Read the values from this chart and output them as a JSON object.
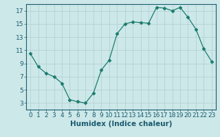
{
  "x": [
    0,
    1,
    2,
    3,
    4,
    5,
    6,
    7,
    8,
    9,
    10,
    11,
    12,
    13,
    14,
    15,
    16,
    17,
    18,
    19,
    20,
    21,
    22,
    23
  ],
  "y": [
    10.5,
    8.5,
    7.5,
    7.0,
    6.0,
    3.5,
    3.2,
    3.0,
    4.5,
    8.0,
    9.5,
    13.5,
    15.0,
    15.3,
    15.2,
    15.1,
    17.5,
    17.4,
    17.0,
    17.5,
    16.0,
    14.2,
    11.2,
    9.3
  ],
  "xlabel": "Humidex (Indice chaleur)",
  "ylabel": "",
  "xlim": [
    -0.5,
    23.5
  ],
  "ylim": [
    2.0,
    18.0
  ],
  "yticks": [
    3,
    5,
    7,
    9,
    11,
    13,
    15,
    17
  ],
  "xticks": [
    0,
    1,
    2,
    3,
    4,
    5,
    6,
    7,
    8,
    9,
    10,
    11,
    12,
    13,
    14,
    15,
    16,
    17,
    18,
    19,
    20,
    21,
    22,
    23
  ],
  "line_color": "#1a7a6e",
  "marker": "D",
  "marker_size": 2.5,
  "bg_color": "#cce8e8",
  "grid_color": "#b8d4d4",
  "font_color": "#1a5a6e",
  "font_size": 6.5,
  "xlabel_fontsize": 7.5
}
